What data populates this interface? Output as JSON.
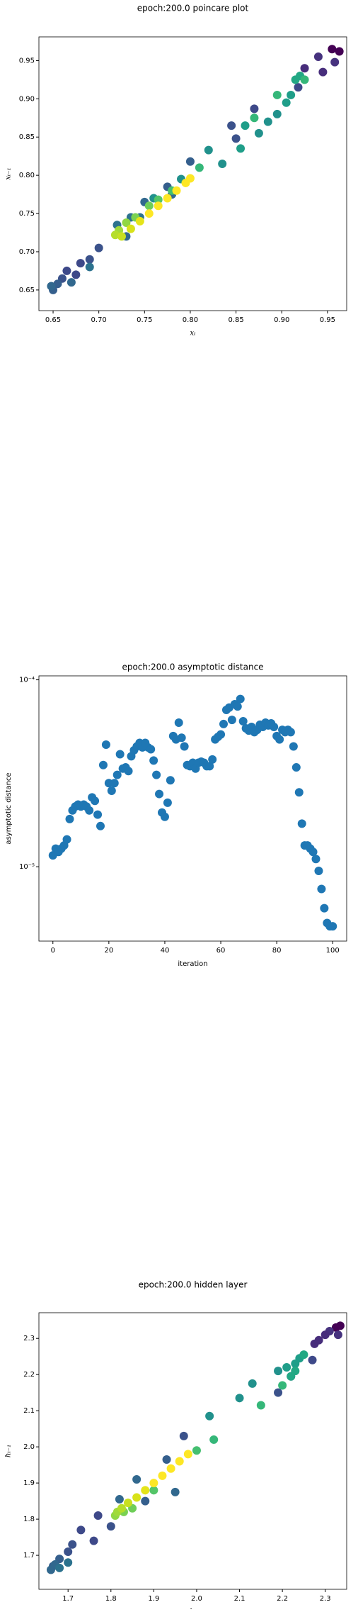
{
  "chart_data": [
    {
      "type": "scatter",
      "title": "epoch:200.0 poincare plot",
      "xlabel": "xₜ",
      "ylabel": "xₜ₋₁",
      "x": [
        0.963,
        0.955,
        0.958,
        0.94,
        0.945,
        0.925,
        0.918,
        0.87,
        0.85,
        0.845,
        0.8,
        0.775,
        0.78,
        0.75,
        0.745,
        0.72,
        0.73,
        0.7,
        0.69,
        0.68,
        0.675,
        0.665,
        0.66,
        0.655,
        0.65,
        0.648,
        0.67,
        0.69,
        0.735,
        0.76,
        0.79,
        0.82,
        0.835,
        0.855,
        0.86,
        0.875,
        0.885,
        0.895,
        0.905,
        0.91,
        0.915,
        0.92,
        0.925,
        0.895,
        0.87,
        0.81,
        0.78,
        0.765,
        0.755,
        0.74,
        0.73,
        0.722,
        0.718,
        0.725,
        0.735,
        0.745,
        0.755,
        0.765,
        0.775,
        0.785,
        0.795,
        0.8
      ],
      "values": [
        0.962,
        0.965,
        0.948,
        0.955,
        0.935,
        0.94,
        0.915,
        0.887,
        0.848,
        0.865,
        0.818,
        0.785,
        0.775,
        0.765,
        0.745,
        0.735,
        0.72,
        0.705,
        0.69,
        0.685,
        0.67,
        0.675,
        0.665,
        0.658,
        0.65,
        0.655,
        0.66,
        0.68,
        0.745,
        0.77,
        0.795,
        0.833,
        0.815,
        0.835,
        0.865,
        0.855,
        0.87,
        0.88,
        0.895,
        0.905,
        0.925,
        0.93,
        0.925,
        0.905,
        0.875,
        0.81,
        0.78,
        0.768,
        0.76,
        0.745,
        0.738,
        0.728,
        0.722,
        0.72,
        0.73,
        0.74,
        0.75,
        0.76,
        0.77,
        0.78,
        0.79,
        0.796
      ],
      "colors": [
        "#440154",
        "#440154",
        "#46327e",
        "#46327e",
        "#472d7b",
        "#472d7b",
        "#3e4989",
        "#3e4989",
        "#3b528b",
        "#3b528b",
        "#355f8d",
        "#355f8d",
        "#31688e",
        "#31688e",
        "#2c728e",
        "#2c728e",
        "#31688e",
        "#3b528b",
        "#3b528b",
        "#3e4989",
        "#3e4989",
        "#3e4989",
        "#3b528b",
        "#355f8d",
        "#355f8d",
        "#31688e",
        "#31688e",
        "#2c728e",
        "#2c728e",
        "#21918c",
        "#21918c",
        "#21918c",
        "#21918c",
        "#1f9e89",
        "#1f9e89",
        "#21918c",
        "#21918c",
        "#21918c",
        "#1f9e89",
        "#1f9e89",
        "#22a884",
        "#22a884",
        "#35b779",
        "#35b779",
        "#35b779",
        "#35b779",
        "#44bf70",
        "#54c568",
        "#6ece58",
        "#7ad151",
        "#90d743",
        "#a0da39",
        "#b5de2b",
        "#c8e020",
        "#d8e219",
        "#e5e419",
        "#fde725",
        "#fde725",
        "#fde725",
        "#fde725",
        "#fde725",
        "#fde725"
      ],
      "xlim": [
        0.6345,
        0.971
      ],
      "ylim": [
        0.623,
        0.981
      ],
      "xticks": [
        0.65,
        {
          "value": 0.7,
          "label": "0.70"
        },
        0.75,
        {
          "value": 0.8,
          "label": "0.80"
        },
        0.85,
        {
          "value": 0.9,
          "label": "0.90"
        },
        0.95
      ],
      "yticks": [
        0.65,
        {
          "value": 0.7,
          "label": "0.70"
        },
        0.75,
        {
          "value": 0.8,
          "label": "0.80"
        },
        0.85,
        {
          "value": 0.9,
          "label": "0.90"
        },
        0.95
      ]
    },
    {
      "type": "scatter",
      "title": "epoch:200.0 asymptotic distance",
      "xlabel": "iteration",
      "ylabel": "asymptotic distance",
      "color": "#1f77b4",
      "ylog": true,
      "x": [
        0,
        1,
        2,
        3,
        4,
        5,
        6,
        7,
        8,
        9,
        10,
        11,
        12,
        13,
        14,
        15,
        16,
        17,
        18,
        19,
        20,
        21,
        22,
        23,
        24,
        25,
        26,
        27,
        28,
        29,
        30,
        31,
        32,
        33,
        34,
        35,
        36,
        37,
        38,
        39,
        40,
        41,
        42,
        43,
        44,
        45,
        46,
        47,
        48,
        49,
        50,
        51,
        52,
        53,
        54,
        55,
        56,
        57,
        58,
        59,
        60,
        61,
        62,
        63,
        64,
        65,
        66,
        67,
        68,
        69,
        70,
        71,
        72,
        73,
        74,
        75,
        76,
        77,
        78,
        79,
        80,
        81,
        82,
        83,
        84,
        85,
        86,
        87,
        88,
        89,
        90,
        91,
        92,
        93,
        94,
        95,
        96,
        97,
        98,
        99,
        100
      ],
      "values": [
        1.15e-05,
        1.25e-05,
        1.2e-05,
        1.25e-05,
        1.3e-05,
        1.4e-05,
        1.8e-05,
        2e-05,
        2.1e-05,
        2.15e-05,
        2.1e-05,
        2.15e-05,
        2.1e-05,
        2e-05,
        2.35e-05,
        2.25e-05,
        1.9e-05,
        1.65e-05,
        3.5e-05,
        4.5e-05,
        2.8e-05,
        2.55e-05,
        2.8e-05,
        3.1e-05,
        4e-05,
        3.35e-05,
        3.4e-05,
        3.25e-05,
        3.9e-05,
        4.2e-05,
        4.4e-05,
        4.6e-05,
        4.35e-05,
        4.6e-05,
        4.35e-05,
        4.25e-05,
        3.7e-05,
        3.1e-05,
        2.45e-05,
        1.95e-05,
        1.85e-05,
        2.2e-05,
        2.9e-05,
        5e-05,
        4.8e-05,
        5.9e-05,
        4.9e-05,
        4.4e-05,
        3.5e-05,
        3.45e-05,
        3.6e-05,
        3.35e-05,
        3.6e-05,
        3.65e-05,
        3.6e-05,
        3.45e-05,
        3.45e-05,
        3.75e-05,
        4.8e-05,
        4.95e-05,
        5.1e-05,
        5.8e-05,
        6.9e-05,
        7.1e-05,
        6.1e-05,
        7.4e-05,
        7.2e-05,
        7.9e-05,
        6e-05,
        5.5e-05,
        5.35e-05,
        5.6e-05,
        5.25e-05,
        5.4e-05,
        5.75e-05,
        5.6e-05,
        5.9e-05,
        5.7e-05,
        5.85e-05,
        5.6e-05,
        5e-05,
        4.8e-05,
        5.4e-05,
        5.25e-05,
        5.4e-05,
        5.25e-05,
        4.4e-05,
        3.4e-05,
        2.5e-05,
        1.7e-05,
        1.3e-05,
        1.3e-05,
        1.25e-05,
        1.2e-05,
        1.1e-05,
        9.5e-06,
        7.6e-06,
        6e-06,
        5e-06,
        4.8e-06,
        4.8e-06
      ],
      "xlim": [
        -5,
        105
      ],
      "ylim": [
        4e-06,
        0.000105
      ],
      "xticks": [
        0,
        20,
        40,
        60,
        80,
        100
      ],
      "yticks": [
        {
          "value": 0.0001,
          "label": "10⁻⁴"
        },
        {
          "value": 1e-05,
          "label": "10⁻⁵"
        }
      ]
    },
    {
      "type": "scatter",
      "title": "epoch:200.0 hidden layer",
      "xlabel": "hₜ",
      "ylabel": "hₜ₋₁",
      "x": [
        2.335,
        2.325,
        2.31,
        2.33,
        2.3,
        2.285,
        2.275,
        2.27,
        2.22,
        2.19,
        1.97,
        1.93,
        1.95,
        1.86,
        1.88,
        1.82,
        1.8,
        1.77,
        1.76,
        1.73,
        1.71,
        1.7,
        1.68,
        1.665,
        1.66,
        1.67,
        1.68,
        1.7,
        2.03,
        2.1,
        2.13,
        2.19,
        2.21,
        2.23,
        2.24,
        2.25,
        2.23,
        2.22,
        2.2,
        2.15,
        2.04,
        2.0,
        1.9,
        1.85,
        1.83,
        1.81,
        1.815,
        1.825,
        1.84,
        1.86,
        1.88,
        1.9,
        1.92,
        1.94,
        1.96,
        1.98
      ],
      "values": [
        2.335,
        2.33,
        2.32,
        2.31,
        2.31,
        2.295,
        2.285,
        2.24,
        2.195,
        2.15,
        2.03,
        1.965,
        1.875,
        1.91,
        1.85,
        1.855,
        1.78,
        1.81,
        1.74,
        1.77,
        1.73,
        1.71,
        1.69,
        1.67,
        1.66,
        1.675,
        1.665,
        1.68,
        2.085,
        2.135,
        2.175,
        2.21,
        2.22,
        2.23,
        2.245,
        2.255,
        2.21,
        2.195,
        2.17,
        2.115,
        2.02,
        1.99,
        1.88,
        1.83,
        1.82,
        1.81,
        1.82,
        1.83,
        1.845,
        1.86,
        1.88,
        1.9,
        1.92,
        1.94,
        1.96,
        1.98
      ],
      "colors": [
        "#440154",
        "#440154",
        "#46327e",
        "#46327e",
        "#472d7b",
        "#472d7b",
        "#472d7b",
        "#3e4989",
        "#3e4989",
        "#3b528b",
        "#3b528b",
        "#355f8d",
        "#31688e",
        "#31688e",
        "#355f8d",
        "#31688e",
        "#3b528b",
        "#3e4989",
        "#3e4989",
        "#3e4989",
        "#3b528b",
        "#3b528b",
        "#355f8d",
        "#355f8d",
        "#31688e",
        "#31688e",
        "#2c728e",
        "#2c728e",
        "#21918c",
        "#21918c",
        "#21918c",
        "#21918c",
        "#1f9e89",
        "#1f9e89",
        "#1f9e89",
        "#22a884",
        "#22a884",
        "#22a884",
        "#35b779",
        "#35b779",
        "#35b779",
        "#44bf70",
        "#54c568",
        "#6ece58",
        "#7ad151",
        "#90d743",
        "#a0da39",
        "#b5de2b",
        "#c8e020",
        "#d8e219",
        "#e5e419",
        "#fde725",
        "#fde725",
        "#fde725",
        "#fde725",
        "#fde725"
      ],
      "xlim": [
        1.632,
        2.35
      ],
      "ylim": [
        1.606,
        2.371
      ],
      "xticks": [
        1.7,
        1.8,
        1.9,
        {
          "value": 2,
          "label": "2.0"
        },
        2.1,
        2.2,
        2.3
      ],
      "yticks": [
        1.7,
        1.8,
        1.9,
        {
          "value": 2,
          "label": "2.0"
        },
        2.1,
        2.2,
        2.3
      ]
    }
  ]
}
